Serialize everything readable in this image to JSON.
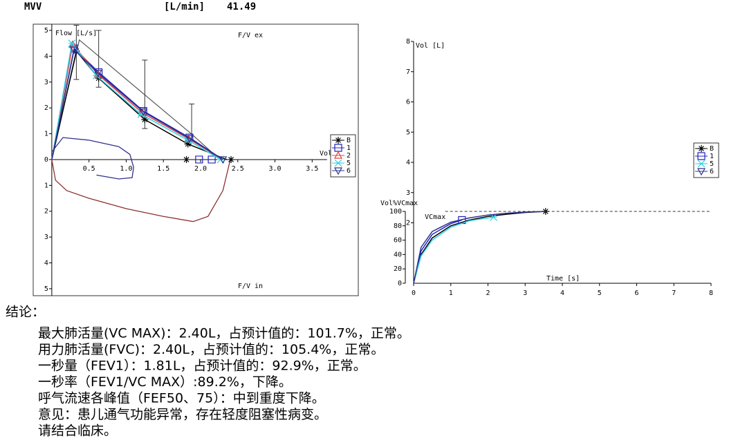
{
  "header": {
    "label": "MVV",
    "unit": "[L/min]",
    "value": "41.49"
  },
  "chart_data": [
    {
      "type": "line",
      "title": "F/V ex",
      "subtitle": "F/V in",
      "y_label": "Flow [L/s]",
      "x_label": "Vol",
      "xlim": [
        -0.25,
        4.12
      ],
      "ylim": [
        -5.27,
        5.24
      ],
      "xticks": [
        0.5,
        {
          "value": 1,
          "label": "1.0"
        },
        1.5,
        {
          "value": 2,
          "label": "2.0"
        },
        2.5,
        {
          "value": 3,
          "label": "3.0"
        },
        3.5
      ],
      "yticks": [
        5,
        4,
        3,
        2,
        1,
        0,
        {
          "value": -1,
          "label": "1"
        },
        {
          "value": -2,
          "label": "2"
        },
        {
          "value": -3,
          "label": "3"
        },
        {
          "value": -4,
          "label": "4"
        },
        {
          "value": -5,
          "label": "5"
        }
      ],
      "series": [
        {
          "name": "B",
          "color": "#000000",
          "marker": "asterisk",
          "x": [
            0,
            0.33,
            0.63,
            1.25,
            1.83,
            2.35
          ],
          "values": [
            0,
            4.2,
            3.15,
            1.55,
            0.6,
            0
          ],
          "marker_x": [
            0.33,
            0.63,
            1.25,
            1.83,
            1.81,
            2.41
          ],
          "marker_values": [
            4.2,
            3.15,
            1.55,
            0.6,
            0,
            0
          ]
        },
        {
          "name": "1",
          "color": "#2020c0",
          "marker": "square",
          "x": [
            0,
            0.3,
            0.63,
            1.23,
            1.85,
            2.3
          ],
          "values": [
            0,
            4.3,
            3.38,
            1.88,
            0.85,
            0
          ],
          "marker_x": [
            0.3,
            0.63,
            1.23,
            1.85,
            1.98,
            2.15
          ],
          "marker_values": [
            4.3,
            3.38,
            1.88,
            0.85,
            0,
            0
          ]
        },
        {
          "name": "2",
          "color": "#e04040",
          "marker": "triangle",
          "x": [
            0,
            0.28,
            0.62,
            1.22,
            1.84,
            2.3
          ],
          "values": [
            0,
            4.45,
            3.3,
            1.8,
            0.8,
            0
          ],
          "marker_x": [
            0.28,
            0.62,
            1.22,
            1.84
          ],
          "marker_values": [
            4.45,
            3.3,
            1.8,
            0.8
          ]
        },
        {
          "name": "5",
          "color": "#30d0e0",
          "marker": "cross",
          "x": [
            0,
            0.27,
            0.6,
            1.2,
            1.83,
            2.27
          ],
          "values": [
            0,
            4.5,
            3.25,
            1.75,
            0.75,
            0
          ],
          "marker_x": [
            0.27,
            0.6,
            1.2,
            1.83,
            2.27
          ],
          "marker_values": [
            4.5,
            3.25,
            1.75,
            0.75,
            0
          ]
        },
        {
          "name": "6",
          "color": "#303090",
          "marker": "down-triangle",
          "x": [
            0,
            0.3,
            0.62,
            1.23,
            1.85,
            2.3
          ],
          "values": [
            0,
            4.25,
            3.35,
            1.85,
            0.82,
            0
          ],
          "marker_x": [
            0.3,
            0.62,
            1.23,
            1.85,
            2.3
          ],
          "marker_values": [
            4.25,
            3.35,
            1.85,
            0.82,
            0
          ]
        }
      ],
      "loops": [
        {
          "color": "#8b3030",
          "x": [
            0,
            0.05,
            0.2,
            0.5,
            1.0,
            1.5,
            1.9,
            2.1,
            2.3,
            2.4
          ],
          "values": [
            0,
            -0.8,
            -1.2,
            -1.5,
            -1.9,
            -2.2,
            -2.4,
            -2.2,
            -1.2,
            0
          ]
        },
        {
          "color": "#303090",
          "x": [
            0,
            0.15,
            0.5,
            0.9,
            1.05,
            1.1,
            1.08,
            0.9,
            0.6
          ],
          "values": [
            0.3,
            0.85,
            0.75,
            0.5,
            0.2,
            -0.3,
            -0.7,
            -0.75,
            -0.6
          ]
        }
      ],
      "predicted": {
        "color": "#555555",
        "x": [
          0,
          0.37,
          1.89,
          2.26
        ],
        "values": [
          0,
          4.63,
          0.96,
          0
        ]
      },
      "error_bars": {
        "x": [
          0.33,
          0.63,
          1.25,
          1.88
        ],
        "low": [
          3.1,
          2.8,
          1.2,
          0.7
        ],
        "high": [
          5.2,
          5.0,
          3.85,
          2.15
        ]
      }
    },
    {
      "type": "line",
      "y_label": "Vol [L]",
      "x_label": "Time [s]",
      "y2_label": "Vol%VCmax",
      "xlim": [
        0,
        8
      ],
      "ylim": [
        0,
        8
      ],
      "y2lim": [
        0,
        336.5
      ],
      "xticks": [
        0,
        1,
        2,
        3,
        4,
        5,
        6,
        7,
        8
      ],
      "yticks": [
        2,
        3,
        4,
        5,
        6,
        7,
        8
      ],
      "y2ticks": [
        0,
        20,
        40,
        60,
        80,
        100
      ],
      "reference": {
        "value": 100,
        "label": "VCmax"
      },
      "series": [
        {
          "name": "B",
          "color": "#000000",
          "marker": "asterisk",
          "axis": "y2",
          "x": [
            0,
            0.2,
            0.5,
            1,
            1.5,
            2,
            2.5,
            3,
            3.55
          ],
          "values": [
            0,
            40,
            63,
            80,
            88,
            93,
            96,
            98.5,
            100
          ],
          "marker_x": [
            3.55
          ],
          "marker_values": [
            100
          ]
        },
        {
          "name": "1",
          "color": "#2020c0",
          "marker": "square",
          "axis": "y2",
          "x": [
            0,
            0.2,
            0.5,
            1,
            1.3
          ],
          "values": [
            0,
            45,
            68,
            83,
            88
          ],
          "marker_x": [
            1.3
          ],
          "marker_values": [
            88
          ]
        },
        {
          "name": "5",
          "color": "#30d0e0",
          "marker": "cross",
          "axis": "y2",
          "x": [
            0,
            0.2,
            0.5,
            1,
            1.5,
            2.15
          ],
          "values": [
            0,
            38,
            60,
            78,
            87,
            92
          ],
          "marker_x": [
            2.15
          ],
          "marker_values": [
            92
          ]
        },
        {
          "name": "6",
          "color": "#303090",
          "marker": "down-triangle",
          "axis": "y2",
          "x": [
            0,
            0.2,
            0.5,
            1,
            1.5,
            2,
            2.5,
            3,
            3.55
          ],
          "values": [
            0,
            50,
            72,
            85,
            91,
            95,
            97.5,
            99,
            100
          ],
          "marker_x": [],
          "marker_values": []
        }
      ]
    }
  ],
  "conclusion": {
    "heading": "结论：",
    "lines": [
      "最大肺活量(VC MAX)：2.40L，占预计值的：101.7%，正常。",
      "用力肺活量(FVC)：2.40L，占预计值的：105.4%，正常。",
      "一秒量（FEV1）：1.81L，占预计值的：92.9%，正常。",
      "一秒率（FEV1/VC MAX）:89.2%，下降。",
      "呼气流速各峰值（FEF50、75）：中到重度下降。",
      "意见：患儿通气功能异常，存在轻度阻塞性病变。",
      "请结合临床。"
    ]
  }
}
